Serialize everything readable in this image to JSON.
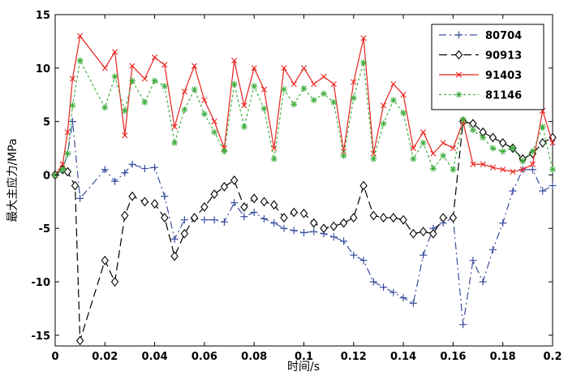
{
  "chart_data": {
    "type": "line",
    "title": "",
    "xlabel": "时间/s",
    "ylabel": "最大主应力/MPa",
    "xlim": [
      0,
      0.2
    ],
    "ylim": [
      -16,
      15
    ],
    "grid": false,
    "legend_position": "top-right",
    "x_ticks": [
      0,
      0.02,
      0.04,
      0.06,
      0.08,
      0.1,
      0.12,
      0.14,
      0.16,
      0.18,
      0.2
    ],
    "x_tick_labels": [
      "0",
      "0.02",
      "0.04",
      "0.06",
      "0.08",
      "0.1",
      "0.12",
      "0.14",
      "0.16",
      "0.18",
      "0.2"
    ],
    "y_ticks": [
      -15,
      -10,
      -5,
      0,
      5,
      10,
      15
    ],
    "y_tick_labels": [
      "-15",
      "-10",
      "-5",
      "0",
      "5",
      "10",
      "15"
    ],
    "series": [
      {
        "name": "80704",
        "color": "#3b4fa0",
        "dash": "dashdot",
        "marker": "plus",
        "x": [
          0,
          0.003,
          0.005,
          0.007,
          0.01,
          0.02,
          0.024,
          0.028,
          0.031,
          0.036,
          0.04,
          0.044,
          0.048,
          0.052,
          0.056,
          0.06,
          0.064,
          0.068,
          0.072,
          0.076,
          0.08,
          0.084,
          0.088,
          0.092,
          0.096,
          0.1,
          0.104,
          0.108,
          0.112,
          0.116,
          0.12,
          0.124,
          0.128,
          0.132,
          0.136,
          0.14,
          0.144,
          0.148,
          0.152,
          0.156,
          0.16,
          0.164,
          0.168,
          0.172,
          0.176,
          0.18,
          0.184,
          0.188,
          0.192,
          0.196,
          0.2
        ],
        "y": [
          0,
          0.5,
          2,
          5,
          -2.2,
          0.5,
          -0.6,
          0.2,
          1,
          0.6,
          0.7,
          -2,
          -6,
          -4.2,
          -4.1,
          -4.2,
          -4.2,
          -4.4,
          -2.6,
          -3.9,
          -3.5,
          -4.1,
          -4.5,
          -5,
          -5.2,
          -5.4,
          -5.3,
          -5.5,
          -5.8,
          -6.2,
          -7.5,
          -8,
          -10,
          -10.5,
          -11,
          -11.5,
          -12,
          -7.5,
          -5,
          -4.5,
          -4,
          -14,
          -8,
          -10,
          -7,
          -4.5,
          -1.5,
          0.5,
          0.5,
          -1.5,
          -1
        ]
      },
      {
        "name": "90913",
        "color": "#000000",
        "dash": "longdash",
        "marker": "diamond",
        "x": [
          0,
          0.003,
          0.005,
          0.008,
          0.01,
          0.02,
          0.024,
          0.028,
          0.031,
          0.036,
          0.04,
          0.044,
          0.048,
          0.052,
          0.056,
          0.06,
          0.064,
          0.068,
          0.072,
          0.076,
          0.08,
          0.084,
          0.088,
          0.092,
          0.096,
          0.1,
          0.104,
          0.108,
          0.112,
          0.116,
          0.12,
          0.124,
          0.128,
          0.132,
          0.136,
          0.14,
          0.144,
          0.148,
          0.152,
          0.156,
          0.16,
          0.164,
          0.168,
          0.172,
          0.176,
          0.18,
          0.184,
          0.188,
          0.192,
          0.196,
          0.2
        ],
        "y": [
          0,
          0.5,
          0.3,
          -1,
          -15.5,
          -8,
          -10,
          -3.8,
          -2,
          -2.5,
          -2.7,
          -4,
          -7.6,
          -5.5,
          -4,
          -3,
          -1.8,
          -1.1,
          -0.5,
          -3,
          -2.2,
          -2.5,
          -2.8,
          -4,
          -3.5,
          -3.6,
          -4.5,
          -5,
          -4.8,
          -4.5,
          -4,
          -1,
          -3.8,
          -4,
          -4,
          -4.2,
          -5.5,
          -5.3,
          -5.5,
          -4,
          -4,
          5,
          4.8,
          4,
          3.5,
          3,
          2.5,
          1.5,
          2,
          3,
          3.5
        ]
      },
      {
        "name": "91403",
        "color": "#e8231d",
        "dash": "solid",
        "marker": "x",
        "x": [
          0,
          0.003,
          0.005,
          0.007,
          0.01,
          0.02,
          0.024,
          0.028,
          0.031,
          0.036,
          0.04,
          0.044,
          0.048,
          0.052,
          0.056,
          0.06,
          0.064,
          0.068,
          0.072,
          0.076,
          0.08,
          0.084,
          0.088,
          0.092,
          0.096,
          0.1,
          0.104,
          0.108,
          0.112,
          0.116,
          0.12,
          0.124,
          0.128,
          0.132,
          0.136,
          0.14,
          0.144,
          0.148,
          0.152,
          0.156,
          0.16,
          0.164,
          0.168,
          0.172,
          0.176,
          0.18,
          0.184,
          0.188,
          0.192,
          0.196,
          0.2
        ],
        "y": [
          0,
          1,
          4,
          9,
          13,
          10,
          11.5,
          3.7,
          10.2,
          9,
          11,
          10.3,
          4.5,
          7.8,
          10.2,
          7,
          5,
          2.5,
          10.7,
          6.5,
          10,
          8,
          2.5,
          10,
          8.5,
          10,
          8.5,
          9.2,
          8.5,
          2.2,
          8.7,
          12.8,
          2,
          6.5,
          8.5,
          7.5,
          2.5,
          4,
          2,
          3,
          2.5,
          5,
          1,
          1,
          0.7,
          0.5,
          0.3,
          0.5,
          1,
          6,
          3
        ]
      },
      {
        "name": "81146",
        "color": "#3fae3f",
        "dash": "dotted",
        "marker": "star",
        "x": [
          0,
          0.003,
          0.005,
          0.007,
          0.01,
          0.02,
          0.024,
          0.028,
          0.031,
          0.036,
          0.04,
          0.044,
          0.048,
          0.052,
          0.056,
          0.06,
          0.064,
          0.068,
          0.072,
          0.076,
          0.08,
          0.084,
          0.088,
          0.092,
          0.096,
          0.1,
          0.104,
          0.108,
          0.112,
          0.116,
          0.12,
          0.124,
          0.128,
          0.132,
          0.136,
          0.14,
          0.144,
          0.148,
          0.152,
          0.156,
          0.16,
          0.164,
          0.168,
          0.172,
          0.176,
          0.18,
          0.184,
          0.188,
          0.192,
          0.196,
          0.2
        ],
        "y": [
          0,
          0.5,
          2,
          6.5,
          10.7,
          6.3,
          9.2,
          6,
          8.8,
          6.8,
          8.8,
          8.3,
          3,
          6.1,
          8,
          5.7,
          4,
          2.2,
          8.5,
          4.5,
          8.3,
          6.2,
          1.5,
          8,
          6.6,
          8.1,
          7,
          7.6,
          6.8,
          1.8,
          7.2,
          10.5,
          1.5,
          4.8,
          7,
          5.8,
          1.5,
          3,
          0.6,
          1.8,
          0.5,
          5.2,
          4.2,
          3.5,
          2.5,
          2.2,
          2.5,
          1.3,
          2.2,
          4.5,
          0.5
        ]
      }
    ]
  }
}
